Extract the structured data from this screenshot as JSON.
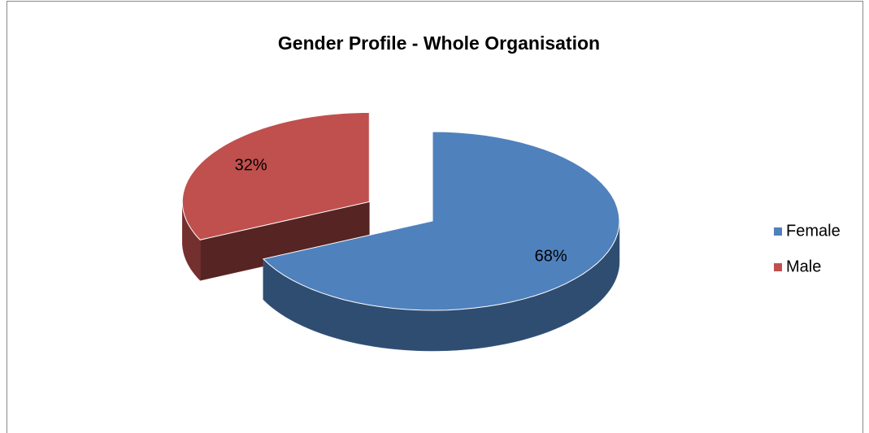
{
  "chart_data": {
    "type": "pie",
    "title": "Gender Profile - Whole Organisation",
    "categories": [
      "Female",
      "Male"
    ],
    "values": [
      68,
      32
    ],
    "value_labels": [
      "68%",
      "32%"
    ],
    "colors": [
      "#4f81bd",
      "#c0504d"
    ],
    "legend": "right"
  }
}
